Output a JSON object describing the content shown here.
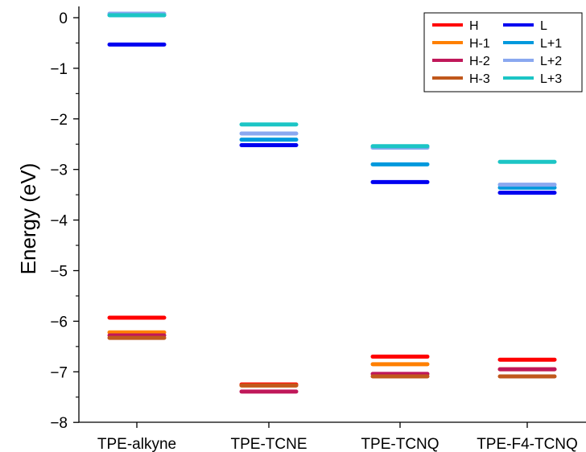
{
  "chart_data": {
    "type": "scatter",
    "ylabel": "Energy (eV)",
    "xlabel": "",
    "title": "",
    "ylim": [
      -8,
      0.2
    ],
    "yticks": [
      0,
      -1,
      -2,
      -3,
      -4,
      -5,
      -6,
      -7,
      -8
    ],
    "ytick_labels": [
      "0",
      "−1",
      "−2",
      "−3",
      "−4",
      "−5",
      "−6",
      "−7",
      "−8"
    ],
    "categories": [
      "TPE-alkyne",
      "TPE-TCNE",
      "TPE-TCNQ",
      "TPE-F4-TCNQ"
    ],
    "legend_position": "top-right",
    "series": [
      {
        "name": "H",
        "color": "#ff0000",
        "values": [
          -5.93,
          -7.25,
          -6.7,
          -6.76
        ]
      },
      {
        "name": "H-1",
        "color": "#ff8000",
        "values": [
          -6.22,
          -7.27,
          -6.85,
          -6.95
        ]
      },
      {
        "name": "H-2",
        "color": "#c0185a",
        "values": [
          -6.28,
          -7.39,
          -7.04,
          -6.95
        ]
      },
      {
        "name": "H-3",
        "color": "#c0581c",
        "values": [
          -6.33,
          -7.27,
          -7.09,
          -7.09
        ]
      },
      {
        "name": "L",
        "color": "#0000f0",
        "values": [
          -0.53,
          -2.52,
          -3.25,
          -3.46
        ]
      },
      {
        "name": "L+1",
        "color": "#0099dd",
        "values": [
          0.05,
          -2.41,
          -2.9,
          -3.36
        ]
      },
      {
        "name": "L+2",
        "color": "#8aa8f0",
        "values": [
          0.08,
          -2.29,
          -2.57,
          -3.3
        ]
      },
      {
        "name": "L+3",
        "color": "#1cc5c5",
        "values": [
          0.05,
          -2.11,
          -2.54,
          -2.85
        ]
      }
    ]
  }
}
